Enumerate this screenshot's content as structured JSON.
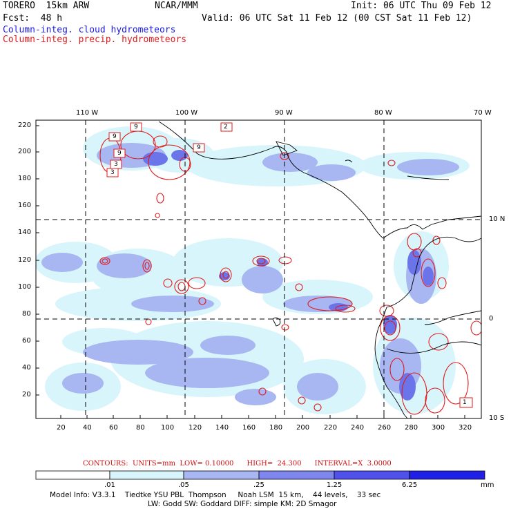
{
  "header": {
    "model": "TORERO  15km ARW",
    "org": "NCAR/MMM",
    "init": "Init: 06 UTC Thu 09 Feb 12",
    "fcst": "Fcst:  48 h",
    "valid": "Valid: 06 UTC Sat 11 Feb 12 (00 CST Sat 11 Feb 12)",
    "field1": "Column-integ. cloud hydrometeors",
    "field2": "Column-integ. precip. hydrometeors"
  },
  "map": {
    "top_lon_labels": [
      "110 W",
      "100 W",
      "90 W",
      "80 W",
      "70 W"
    ],
    "right_lat_labels": [
      "10 N",
      "0",
      "10 S"
    ],
    "y_ticks": [
      "220",
      "200",
      "180",
      "160",
      "140",
      "120",
      "100",
      "80",
      "60",
      "40",
      "20"
    ],
    "x_ticks": [
      "20",
      "40",
      "60",
      "80",
      "100",
      "120",
      "140",
      "160",
      "180",
      "200",
      "220",
      "240",
      "260",
      "280",
      "300",
      "320"
    ],
    "box_labels": [
      "9",
      "9",
      "9",
      "3",
      "3",
      "9",
      "2",
      "1"
    ]
  },
  "contours_line": "CONTOURS:  UNITS=mm  LOW= 0.10000      HIGH=  24.300      INTERVAL=X  3.0000",
  "colorbar": {
    "labels": [
      ".01",
      ".05",
      ".25",
      "1.25",
      "6.25"
    ],
    "units": "mm",
    "colors": [
      "#ffffff",
      "#d8f5fb",
      "#a8b6f2",
      "#7e86ee",
      "#5050ea",
      "#2020e6"
    ]
  },
  "footer": {
    "line1": "Model Info: V3.3.1    Tiedtke YSU PBL  Thompson     Noah LSM  15 km,    44 levels,    33 sec",
    "line2": "LW: Godd SW: Goddard DIFF: simple KM: 2D Smagor"
  }
}
